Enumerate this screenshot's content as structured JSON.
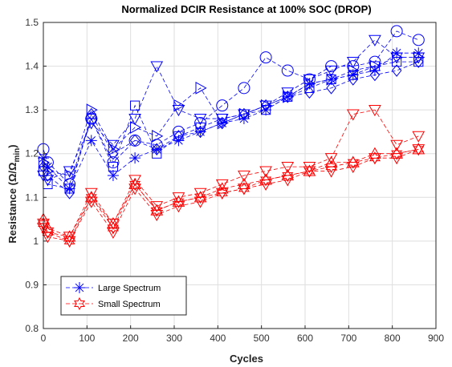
{
  "chart_data": {
    "type": "line",
    "title": "Normalized DCIR Resistance at 100% SOC (DROP)",
    "xlabel": "Cycles",
    "ylabel": "Resistance (Ω/Ω",
    "ylabel_subscript": "min",
    "ylabel_close": ")",
    "xlim": [
      0,
      900
    ],
    "ylim": [
      0.8,
      1.5
    ],
    "xticks": [
      0,
      100,
      200,
      300,
      400,
      500,
      600,
      700,
      800,
      900
    ],
    "yticks": [
      0.8,
      0.9,
      1.0,
      1.1,
      1.2,
      1.3,
      1.4,
      1.5
    ],
    "ytick_labels": [
      "0.8",
      "0.9",
      "1",
      "1.1",
      "1.2",
      "1.3",
      "1.4",
      "1.5"
    ],
    "grid": true,
    "legend_position": "bottom-left",
    "legend": [
      {
        "label": "Large Spectrum",
        "color": "#0000ff",
        "marker": "asterisk"
      },
      {
        "label": "Small Spectrum",
        "color": "#ff0000",
        "marker": "hexagram"
      }
    ],
    "x": [
      0,
      10,
      60,
      110,
      160,
      210,
      260,
      310,
      360,
      410,
      460,
      510,
      560,
      610,
      660,
      710,
      760,
      810,
      860
    ],
    "series": [
      {
        "group": "large",
        "marker": "asterisk",
        "color": "#0000ff",
        "values": [
          1.19,
          1.17,
          1.12,
          1.23,
          1.15,
          1.19,
          1.21,
          1.23,
          1.25,
          1.27,
          1.28,
          1.3,
          1.33,
          1.36,
          1.37,
          1.38,
          1.39,
          1.43,
          1.43
        ]
      },
      {
        "group": "large",
        "marker": "circle",
        "color": "#0000ff",
        "values": [
          1.21,
          1.18,
          1.13,
          1.28,
          1.18,
          1.23,
          1.22,
          1.25,
          1.27,
          1.31,
          1.35,
          1.42,
          1.39,
          1.37,
          1.4,
          1.4,
          1.41,
          1.48,
          1.46
        ]
      },
      {
        "group": "large",
        "marker": "diamond",
        "color": "#0000ff",
        "values": [
          1.17,
          1.15,
          1.11,
          1.29,
          1.2,
          1.23,
          1.21,
          1.24,
          1.25,
          1.27,
          1.29,
          1.31,
          1.33,
          1.34,
          1.35,
          1.37,
          1.38,
          1.39,
          1.41
        ]
      },
      {
        "group": "large",
        "marker": "triangle-right",
        "color": "#0000ff",
        "values": [
          1.18,
          1.16,
          1.15,
          1.3,
          1.21,
          1.26,
          1.24,
          1.31,
          1.35,
          1.27,
          1.29,
          1.31,
          1.33,
          1.36,
          1.37,
          1.39,
          1.4,
          1.42,
          1.42
        ]
      },
      {
        "group": "large",
        "marker": "triangle-down",
        "color": "#0000ff",
        "values": [
          1.15,
          1.14,
          1.16,
          1.27,
          1.22,
          1.28,
          1.4,
          1.3,
          1.28,
          1.28,
          1.29,
          1.31,
          1.34,
          1.37,
          1.39,
          1.41,
          1.46,
          1.42,
          1.42
        ]
      },
      {
        "group": "large",
        "marker": "square",
        "color": "#0000ff",
        "values": [
          1.16,
          1.13,
          1.12,
          1.28,
          1.17,
          1.31,
          1.2,
          1.24,
          1.26,
          1.28,
          1.29,
          1.3,
          1.33,
          1.35,
          1.37,
          1.38,
          1.4,
          1.41,
          1.41
        ]
      },
      {
        "group": "small",
        "marker": "hexagram",
        "color": "#ff0000",
        "values": [
          1.04,
          1.02,
          1.0,
          1.1,
          1.03,
          1.13,
          1.07,
          1.09,
          1.1,
          1.11,
          1.12,
          1.14,
          1.15,
          1.16,
          1.17,
          1.18,
          1.19,
          1.2,
          1.21
        ]
      },
      {
        "group": "small",
        "marker": "triangle-down",
        "color": "#ff0000",
        "values": [
          1.03,
          1.02,
          1.01,
          1.11,
          1.04,
          1.14,
          1.08,
          1.1,
          1.11,
          1.13,
          1.15,
          1.16,
          1.17,
          1.17,
          1.19,
          1.29,
          1.3,
          1.22,
          1.24
        ]
      },
      {
        "group": "small",
        "marker": "triangle-up",
        "color": "#ff0000",
        "values": [
          1.05,
          1.03,
          1.01,
          1.1,
          1.04,
          1.13,
          1.07,
          1.09,
          1.1,
          1.12,
          1.13,
          1.14,
          1.15,
          1.16,
          1.18,
          1.18,
          1.2,
          1.2,
          1.21
        ]
      },
      {
        "group": "small",
        "marker": "triangle-down",
        "color": "#ff0000",
        "values": [
          1.04,
          1.01,
          1.0,
          1.09,
          1.02,
          1.12,
          1.06,
          1.08,
          1.09,
          1.11,
          1.12,
          1.13,
          1.14,
          1.16,
          1.16,
          1.17,
          1.19,
          1.19,
          1.21
        ]
      }
    ]
  }
}
